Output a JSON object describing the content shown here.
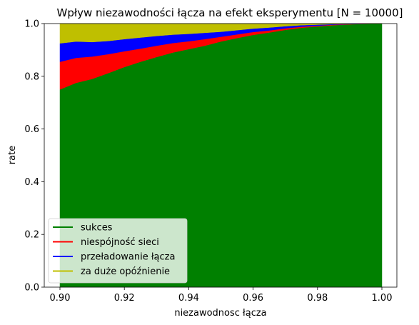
{
  "chart_data": {
    "type": "area",
    "stacked": true,
    "title": "Wpływ niezawodności łącza na efekt eksperymentu [N = 10000]",
    "xlabel": "niezawodnosc łącza",
    "ylabel": "rate",
    "xlim": [
      0.9,
      1.0
    ],
    "ylim": [
      0.0,
      1.0
    ],
    "xticks": [
      "0.90",
      "0.92",
      "0.94",
      "0.96",
      "0.98",
      "1.00"
    ],
    "yticks": [
      "0.0",
      "0.2",
      "0.4",
      "0.6",
      "0.8",
      "1.0"
    ],
    "grid": false,
    "legend_position": "lower-left",
    "x": [
      0.9,
      0.905,
      0.91,
      0.915,
      0.92,
      0.925,
      0.93,
      0.935,
      0.94,
      0.945,
      0.95,
      0.955,
      0.96,
      0.965,
      0.97,
      0.975,
      0.98,
      0.985,
      0.99,
      0.995,
      1.0
    ],
    "series": [
      {
        "name": "sukces",
        "color": "#008000",
        "values": [
          0.75,
          0.775,
          0.79,
          0.812,
          0.835,
          0.855,
          0.873,
          0.89,
          0.903,
          0.916,
          0.932,
          0.945,
          0.957,
          0.966,
          0.976,
          0.984,
          0.989,
          0.994,
          0.997,
          0.999,
          1.0
        ]
      },
      {
        "name": "niespójność sieci",
        "color": "#ff0000",
        "values": [
          0.105,
          0.095,
          0.085,
          0.072,
          0.06,
          0.05,
          0.043,
          0.036,
          0.03,
          0.025,
          0.018,
          0.014,
          0.011,
          0.008,
          0.006,
          0.004,
          0.003,
          0.002,
          0.001,
          0.0,
          0.0
        ]
      },
      {
        "name": "przeładowanie łącza",
        "color": "#0000ff",
        "values": [
          0.07,
          0.062,
          0.055,
          0.05,
          0.046,
          0.042,
          0.037,
          0.032,
          0.028,
          0.024,
          0.019,
          0.016,
          0.013,
          0.011,
          0.008,
          0.006,
          0.004,
          0.002,
          0.001,
          0.001,
          0.0
        ]
      },
      {
        "name": "za duże opóźnienie",
        "color": "#bfbf00",
        "values": [
          0.075,
          0.068,
          0.07,
          0.066,
          0.059,
          0.053,
          0.047,
          0.042,
          0.039,
          0.035,
          0.031,
          0.025,
          0.019,
          0.015,
          0.01,
          0.006,
          0.004,
          0.002,
          0.001,
          0.0,
          0.0
        ]
      }
    ]
  }
}
